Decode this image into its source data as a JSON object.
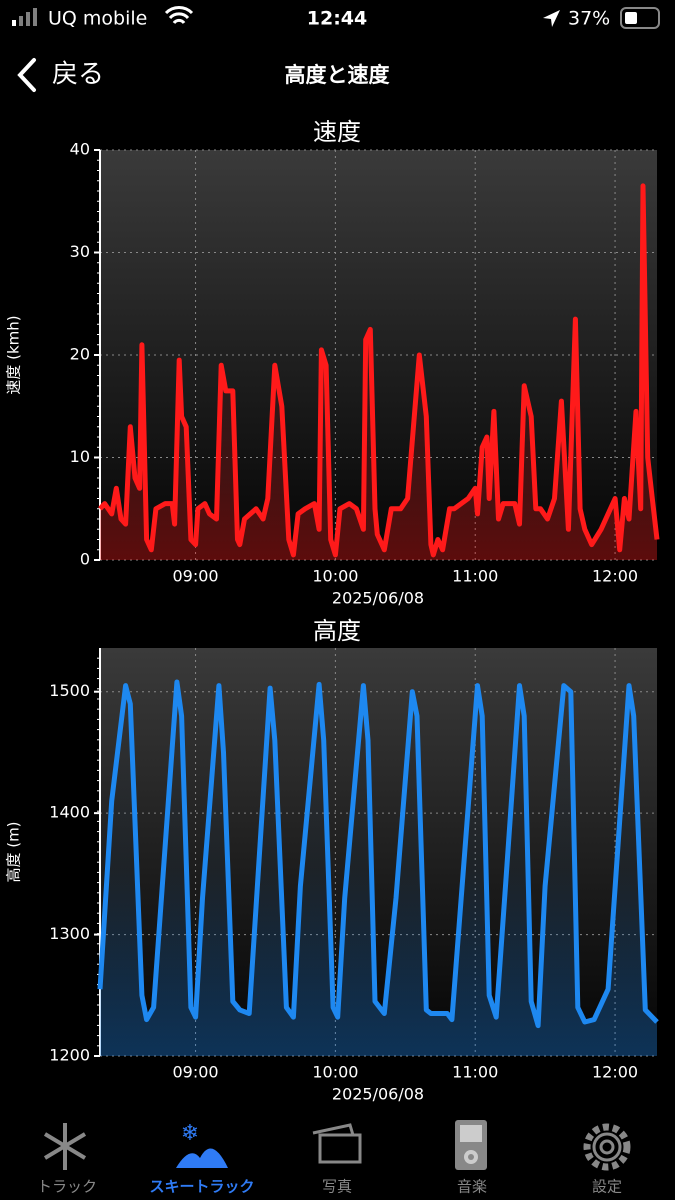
{
  "status_bar": {
    "carrier": "UQ mobile",
    "time": "12:44",
    "battery": "37%"
  },
  "nav": {
    "back": "戻る",
    "title": "高度と速度"
  },
  "chart_data": [
    {
      "type": "line",
      "title": "速度",
      "y_label": "速度 (kmh)",
      "x_label": "2025/06/08",
      "x": [
        499,
        501,
        504,
        506,
        508,
        510,
        512,
        514,
        516,
        517,
        519,
        521,
        523,
        527,
        530,
        531,
        533,
        534,
        536,
        538,
        540,
        541,
        544,
        546,
        549,
        551,
        553,
        556,
        558,
        559,
        561,
        566,
        569,
        571,
        574,
        577,
        580,
        582,
        584,
        587,
        591,
        593,
        594,
        596,
        598,
        600,
        602,
        606,
        609,
        612,
        613,
        615,
        617,
        618,
        621,
        624,
        628,
        631,
        636,
        639,
        641,
        642,
        644,
        646,
        649,
        651,
        654,
        657,
        660,
        661,
        663,
        665,
        666,
        668,
        670,
        672,
        677,
        679,
        681,
        684,
        686,
        688,
        691,
        694,
        697,
        700,
        703,
        705,
        707,
        710,
        714,
        720,
        722,
        724,
        726,
        729,
        731,
        732,
        734,
        736,
        738
      ],
      "series": [
        {
          "color": "#ff1a1a",
          "values": [
            5,
            5.5,
            4.5,
            7,
            4,
            3.5,
            13,
            8,
            7,
            21,
            2,
            1,
            5,
            5.5,
            5.5,
            3.5,
            19.5,
            14,
            13,
            2,
            1.5,
            5,
            5.5,
            4.5,
            4,
            19,
            16.5,
            16.5,
            2,
            1.5,
            4,
            5,
            4,
            6,
            19,
            15,
            2,
            0.5,
            4.5,
            5,
            5.5,
            3,
            20.5,
            19,
            2,
            0.5,
            5,
            5.5,
            5,
            3,
            21.5,
            22.5,
            5,
            2.5,
            1,
            5,
            5,
            6,
            20,
            14,
            1.5,
            0.5,
            2,
            1,
            5,
            5,
            5.5,
            6,
            7,
            4.5,
            11,
            12,
            6,
            14.5,
            4,
            5.5,
            5.5,
            3.5,
            17,
            14,
            5,
            5,
            4,
            6,
            15.5,
            3,
            23.5,
            5,
            3,
            1.5,
            3,
            6,
            1,
            6,
            4,
            14.5,
            5,
            36.5,
            10,
            6,
            2
          ]
        }
      ],
      "xlim": [
        499,
        738
      ],
      "ylim": [
        0,
        40
      ],
      "xticks": [
        {
          "value": 540,
          "label": "09:00"
        },
        {
          "value": 600,
          "label": "10:00"
        },
        {
          "value": 660,
          "label": "11:00"
        },
        {
          "value": 720,
          "label": "12:00"
        }
      ],
      "yticks": [
        0,
        10,
        20,
        30,
        40
      ],
      "grid": true
    },
    {
      "type": "line",
      "title": "高度",
      "y_label": "高度 (m)",
      "x_label": "2025/06/08",
      "x": [
        499,
        504,
        510,
        512,
        517,
        519,
        522,
        532,
        534,
        538,
        540,
        543,
        550,
        552,
        556,
        559,
        563,
        572,
        574,
        579,
        582,
        585,
        593,
        595,
        599,
        601,
        604,
        612,
        614,
        617,
        621,
        626,
        633,
        635,
        639,
        641,
        648,
        650,
        654,
        661,
        663,
        666,
        669,
        673,
        679,
        681,
        684,
        687,
        690,
        698,
        701,
        704,
        707,
        711,
        717,
        726,
        728,
        733,
        738
      ],
      "series": [
        {
          "color": "#1e88f0",
          "values": [
            1255,
            1410,
            1505,
            1490,
            1250,
            1230,
            1240,
            1508,
            1480,
            1240,
            1232,
            1330,
            1505,
            1450,
            1245,
            1238,
            1235,
            1503,
            1460,
            1240,
            1232,
            1340,
            1506,
            1460,
            1240,
            1232,
            1330,
            1505,
            1460,
            1245,
            1235,
            1330,
            1500,
            1480,
            1238,
            1235,
            1235,
            1230,
            1330,
            1505,
            1480,
            1250,
            1232,
            1340,
            1505,
            1480,
            1245,
            1225,
            1340,
            1505,
            1500,
            1240,
            1228,
            1230,
            1255,
            1505,
            1480,
            1238,
            1228
          ]
        }
      ],
      "xlim": [
        499,
        738
      ],
      "ylim": [
        1200,
        1536
      ],
      "xticks": [
        {
          "value": 540,
          "label": "09:00"
        },
        {
          "value": 600,
          "label": "10:00"
        },
        {
          "value": 660,
          "label": "11:00"
        },
        {
          "value": 720,
          "label": "12:00"
        }
      ],
      "yticks": [
        1200,
        1300,
        1400,
        1500
      ],
      "grid": true
    }
  ],
  "tabs": [
    "トラック",
    "スキートラック",
    "写真",
    "音楽",
    "設定"
  ],
  "active_tab": 1
}
